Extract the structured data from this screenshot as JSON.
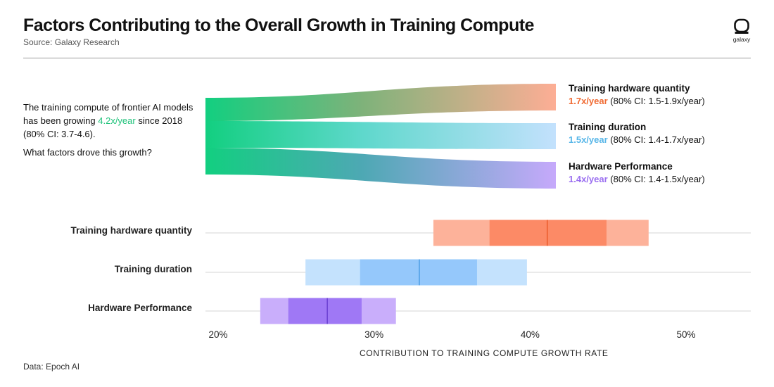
{
  "title": "Factors Contributing to the Overall Growth in Training Compute",
  "subtitle": "Source: Galaxy Research",
  "logo_text": "galaxy",
  "intro": {
    "line1_pre": "The training compute of frontier AI models has been growing ",
    "line1_rate": "4.2x/year",
    "line1_post": " since 2018 (80% CI: 3.7-4.6).",
    "question": "What factors drove this growth?"
  },
  "legend": [
    {
      "title": "Training hardware quantity",
      "rate": "1.7x/year",
      "ci": " (80% CI: 1.5-1.9x/year)"
    },
    {
      "title": "Training duration",
      "rate": "1.5x/year",
      "ci": " (80% CI: 1.4-1.7x/year)"
    },
    {
      "title": "Hardware Performance",
      "rate": "1.4x/year",
      "ci": " (80% CI: 1.4-1.5x/year)"
    }
  ],
  "footnote": "Data: Epoch AI",
  "colors": {
    "green": "#16cc7f",
    "orange_light": "#fdb29a",
    "orange_mid": "#fc8a66",
    "orange_dark": "#ea5a2a",
    "blue_light": "#c4e2fd",
    "blue_mid": "#95c8fb",
    "blue_dark": "#4c9de6",
    "purple_light": "#c9aefb",
    "purple_mid": "#9f78f5",
    "purple_dark": "#6a3fd0",
    "orange_text": "#f06a32",
    "blue_text": "#57b6e8",
    "purple_text": "#9a6ef0",
    "gridline": "#d6d6d6"
  },
  "chart_data": {
    "type": "box",
    "xlabel": "CONTRIBUTION TO TRAINING COMPUTE GROWTH RATE",
    "ticks": [
      20,
      30,
      40,
      50
    ],
    "tick_labels": [
      "20%",
      "30%",
      "40%",
      "50%"
    ],
    "xlim": [
      19.5,
      54
    ],
    "series": [
      {
        "name": "Training hardware quantity",
        "outer": [
          33.8,
          47.6
        ],
        "inner": [
          37.4,
          44.9
        ],
        "median": 41.1
      },
      {
        "name": "Training duration",
        "outer": [
          25.6,
          39.8
        ],
        "inner": [
          29.1,
          36.6
        ],
        "median": 32.9
      },
      {
        "name": "Hardware Performance",
        "outer": [
          22.7,
          31.4
        ],
        "inner": [
          24.5,
          29.2
        ],
        "median": 27.0
      }
    ]
  }
}
